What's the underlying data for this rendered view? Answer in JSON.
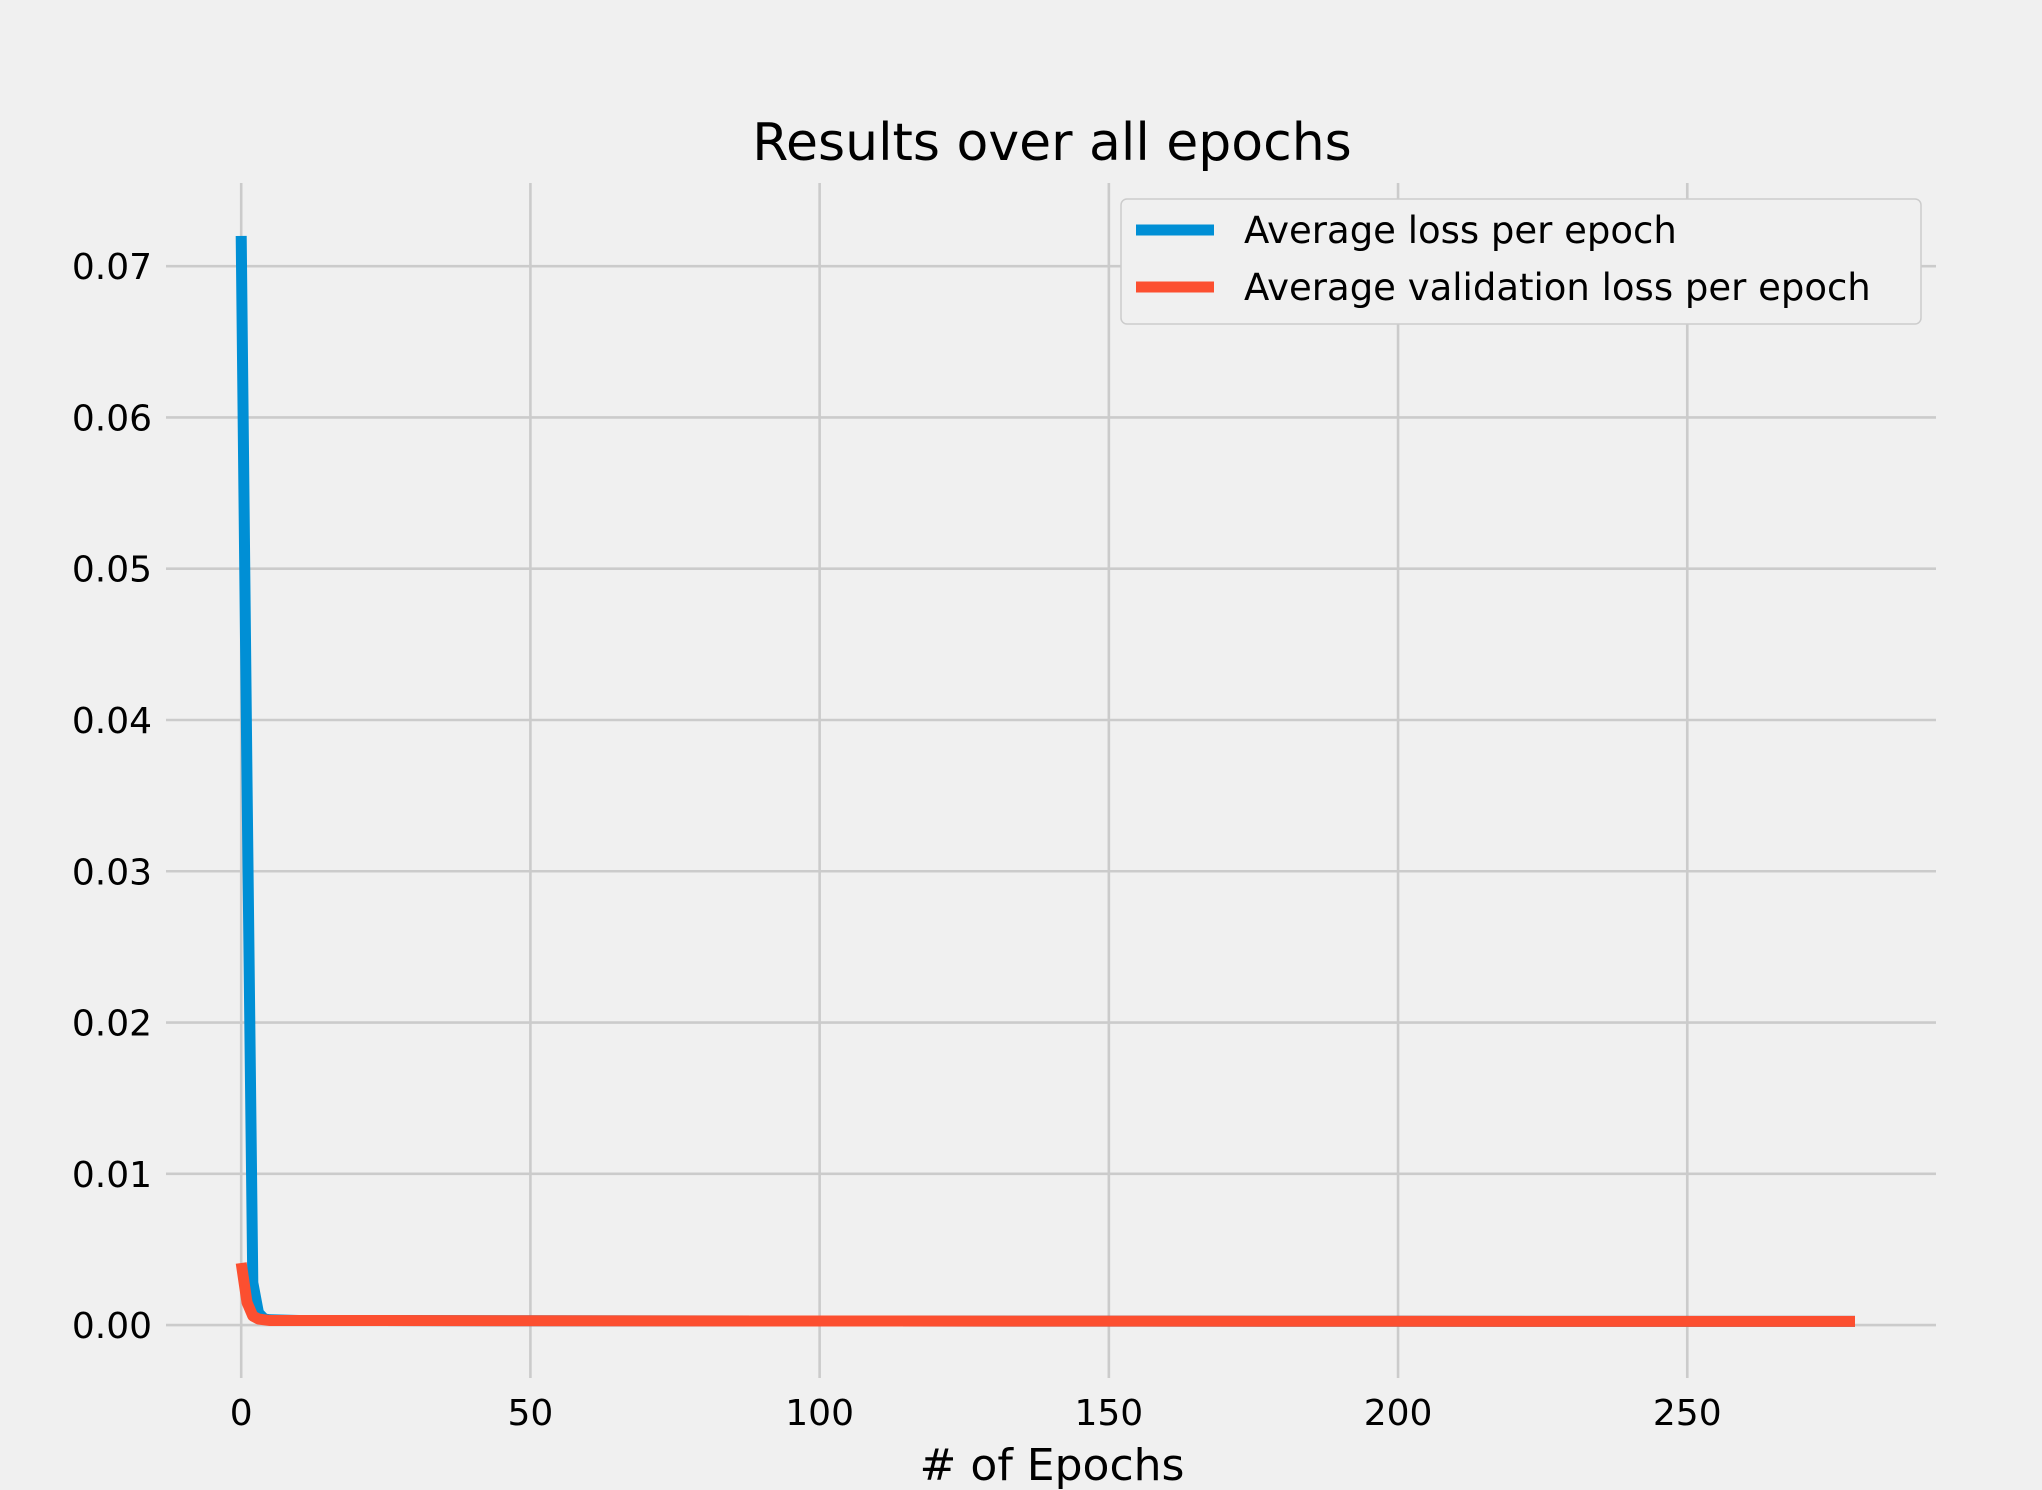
{
  "chart_data": {
    "type": "line",
    "title": "Results over all epochs",
    "xlabel": "# of Epochs",
    "ylabel": "",
    "xlim": [
      -13,
      293
    ],
    "ylim": [
      -0.0035,
      0.0755
    ],
    "xticks": [
      0,
      50,
      100,
      150,
      200,
      250
    ],
    "yticks": [
      0.0,
      0.01,
      0.02,
      0.03,
      0.04,
      0.05,
      0.06,
      0.07
    ],
    "ytick_labels": [
      "0.00",
      "0.01",
      "0.02",
      "0.03",
      "0.04",
      "0.05",
      "0.06",
      "0.07"
    ],
    "grid": true,
    "legend_position": "top-right",
    "series": [
      {
        "name": "Average loss per epoch",
        "color": "#008fd5",
        "x": [
          0,
          1,
          2,
          3,
          4,
          5,
          10,
          20,
          50,
          100,
          150,
          200,
          250,
          279
        ],
        "y": [
          0.072,
          0.036,
          0.0028,
          0.0008,
          0.0004,
          0.00035,
          0.0003,
          0.0003,
          0.00028,
          0.00027,
          0.00026,
          0.00025,
          0.00024,
          0.00024
        ]
      },
      {
        "name": "Average validation loss per epoch",
        "color": "#fc4f30",
        "x": [
          0,
          1,
          2,
          3,
          4,
          5,
          10,
          20,
          50,
          100,
          150,
          200,
          250,
          279
        ],
        "y": [
          0.0041,
          0.0015,
          0.0006,
          0.0004,
          0.00035,
          0.0003,
          0.0003,
          0.0003,
          0.00028,
          0.00027,
          0.00026,
          0.00025,
          0.00024,
          0.00024
        ]
      }
    ]
  }
}
